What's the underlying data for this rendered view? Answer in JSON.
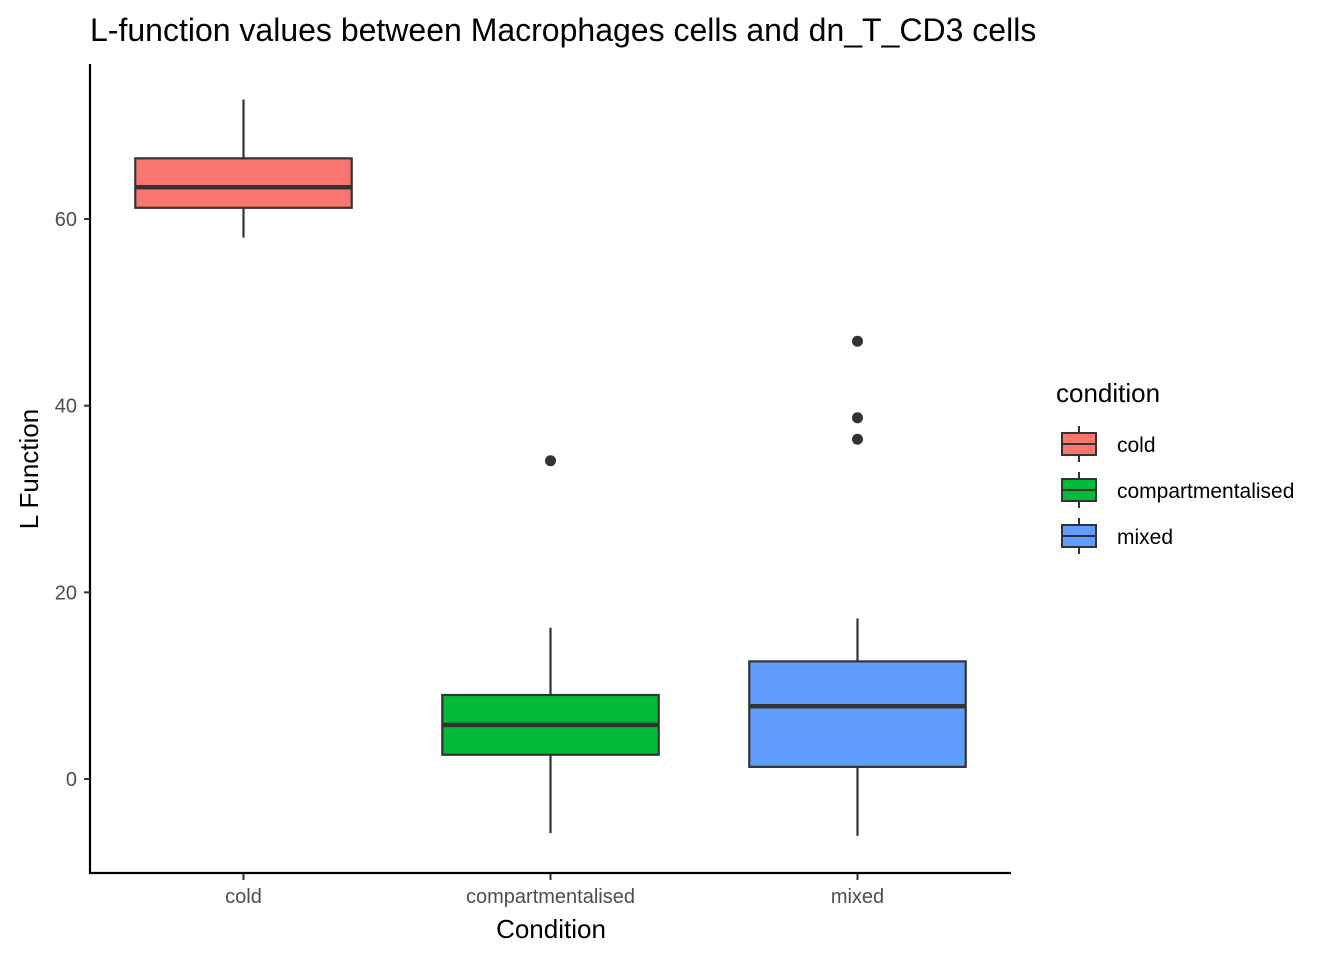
{
  "chart_data": {
    "type": "box",
    "title": "L-function values between Macrophages cells and dn_T_CD3 cells",
    "xlabel": "Condition",
    "ylabel": "L Function",
    "ylim": [
      -10,
      77
    ],
    "yticks": [
      0,
      20,
      40,
      60
    ],
    "grid": false,
    "legend": {
      "title": "condition",
      "position": "right",
      "entries": [
        "cold",
        "compartmentalised",
        "mixed"
      ]
    },
    "categories": [
      "cold",
      "compartmentalised",
      "mixed"
    ],
    "boxes": [
      {
        "category": "cold",
        "color": "#F8766D",
        "whisker_low": 58.0,
        "q1": 61.2,
        "median": 63.4,
        "q3": 66.5,
        "whisker_high": 72.8,
        "outliers": []
      },
      {
        "category": "compartmentalised",
        "color": "#00BA38",
        "whisker_low": -5.8,
        "q1": 2.6,
        "median": 5.8,
        "q3": 9.0,
        "whisker_high": 16.2,
        "outliers": [
          34.1
        ]
      },
      {
        "category": "mixed",
        "color": "#619CFF",
        "whisker_low": -6.1,
        "q1": 1.3,
        "median": 7.8,
        "q3": 12.6,
        "whisker_high": 17.2,
        "outliers": [
          46.9,
          38.7,
          36.4
        ]
      }
    ]
  }
}
